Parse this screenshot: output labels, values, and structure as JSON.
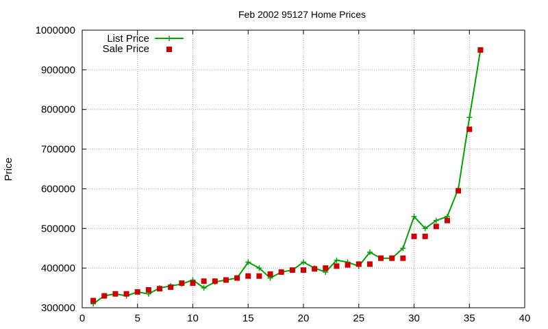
{
  "chart_data": {
    "type": "line",
    "title": "Feb 2002 95127 Home Prices",
    "xlabel": "",
    "ylabel": "Price",
    "xlim": [
      0,
      40
    ],
    "ylim": [
      300000,
      1000000
    ],
    "x_ticks": [
      0,
      5,
      10,
      15,
      20,
      25,
      30,
      35,
      40
    ],
    "y_ticks": [
      300000,
      400000,
      500000,
      600000,
      700000,
      800000,
      900000,
      1000000
    ],
    "x_tick_labels": [
      "0",
      "5",
      "10",
      "15",
      "20",
      "25",
      "30",
      "35",
      "40"
    ],
    "y_tick_labels": [
      "300000",
      "400000",
      "500000",
      "600000",
      "700000",
      "800000",
      "900000",
      "1000000"
    ],
    "grid": true,
    "legend_position": "top-left",
    "x": [
      1,
      2,
      3,
      4,
      5,
      6,
      7,
      8,
      9,
      10,
      11,
      12,
      13,
      14,
      15,
      16,
      17,
      18,
      19,
      20,
      21,
      22,
      23,
      24,
      25,
      26,
      27,
      28,
      29,
      30,
      31,
      32,
      33,
      34,
      35,
      36
    ],
    "series": [
      {
        "name": "List Price",
        "style": "line-plus",
        "color": "#00a000",
        "values": [
          310000,
          330000,
          335000,
          330000,
          340000,
          335000,
          350000,
          355000,
          360000,
          370000,
          350000,
          365000,
          370000,
          375000,
          415000,
          400000,
          375000,
          390000,
          395000,
          415000,
          400000,
          390000,
          420000,
          415000,
          405000,
          440000,
          425000,
          425000,
          450000,
          530000,
          500000,
          520000,
          530000,
          600000,
          780000,
          950000
        ]
      },
      {
        "name": "Sale Price",
        "style": "square",
        "color": "#cc0000",
        "values": [
          318000,
          330000,
          335000,
          335000,
          340000,
          345000,
          348000,
          352000,
          362000,
          362000,
          367000,
          367000,
          370000,
          375000,
          380000,
          380000,
          385000,
          390000,
          395000,
          395000,
          398000,
          400000,
          405000,
          408000,
          410000,
          410000,
          425000,
          425000,
          425000,
          480000,
          480000,
          505000,
          520000,
          595000,
          750000,
          950000
        ]
      }
    ]
  }
}
